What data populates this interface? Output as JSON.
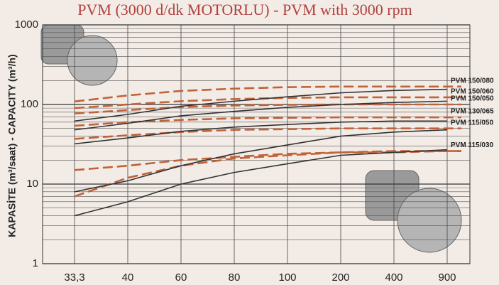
{
  "chart_data": {
    "type": "line",
    "title": "PVM (3000 d/dk MOTORLU) - PVM with 3000 rpm",
    "ylabel": "KAPASİTE (m³/saat) - CAPACITY (m³/h)",
    "categories": [
      "33,3",
      "40",
      "60",
      "80",
      "100",
      "200",
      "400",
      "900"
    ],
    "ylim": [
      1,
      1000
    ],
    "yticks": [
      1,
      10,
      100,
      1000
    ],
    "log_y": true,
    "grid": true,
    "series": [
      {
        "name": "PVM 150/080",
        "color": "#c0623a",
        "dash": true,
        "values": [
          109,
          130,
          148,
          158,
          165,
          168,
          168,
          168
        ]
      },
      {
        "name": "PVM 150/060",
        "color": "#c0623a",
        "dash": true,
        "values": [
          90,
          100,
          110,
          117,
          121,
          123,
          123,
          123
        ]
      },
      {
        "name": "PVM 150/050",
        "color": "#c0623a",
        "dash": true,
        "values": [
          77,
          85,
          93,
          97,
          99,
          100,
          100,
          100
        ]
      },
      {
        "name": "PVM 130/065",
        "color": "#c0623a",
        "dash": true,
        "values": [
          54,
          60,
          64,
          67,
          68,
          69,
          69,
          69
        ]
      },
      {
        "name": "PVM 115/050",
        "color": "#c0623a",
        "dash": true,
        "values": [
          37,
          41,
          45,
          48,
          49,
          50,
          50,
          50
        ]
      },
      {
        "name": "PVM 115/030",
        "color": "#c0623a",
        "dash": true,
        "values": [
          7,
          12,
          17,
          21,
          23,
          25,
          25,
          26
        ]
      },
      {
        "color": "#c0623a",
        "dash": true,
        "values": [
          15,
          17,
          20,
          22,
          24,
          25,
          26,
          26
        ]
      },
      {
        "color": "#333333",
        "dash": false,
        "values": [
          62,
          75,
          95,
          110,
          125,
          140,
          150,
          155
        ]
      },
      {
        "color": "#333333",
        "dash": false,
        "values": [
          48,
          58,
          72,
          82,
          92,
          100,
          106,
          110
        ]
      },
      {
        "color": "#333333",
        "dash": false,
        "values": [
          32,
          38,
          46,
          52,
          56,
          60,
          62,
          62
        ]
      },
      {
        "color": "#333333",
        "dash": false,
        "values": [
          8,
          11,
          17,
          24,
          31,
          40,
          45,
          48
        ]
      },
      {
        "color": "#333333",
        "dash": false,
        "values": [
          4,
          6,
          10,
          14,
          18,
          23,
          25,
          27
        ]
      }
    ]
  }
}
